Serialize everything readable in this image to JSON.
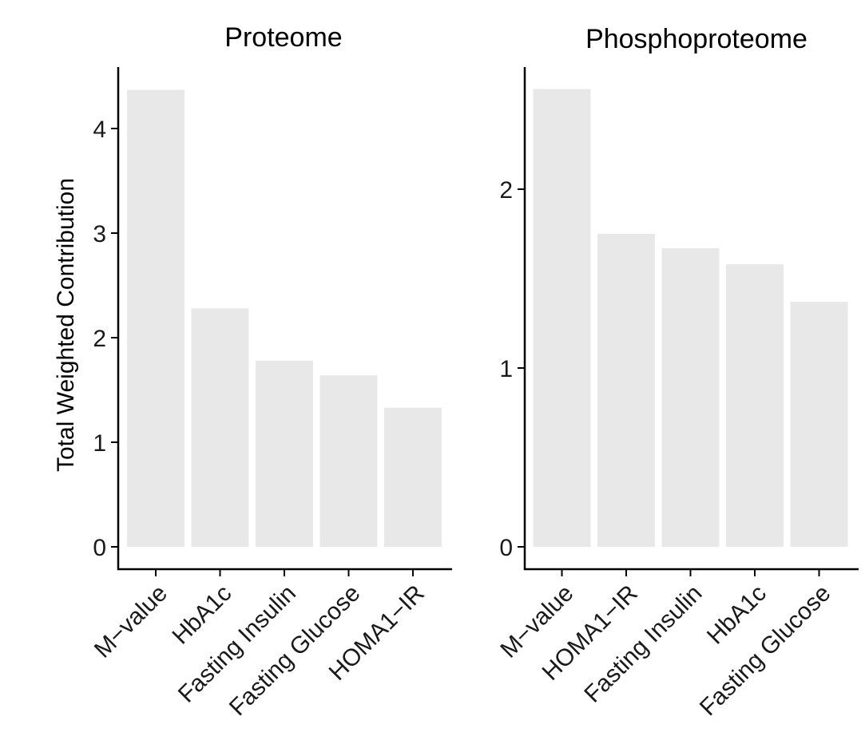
{
  "chart_data": [
    {
      "type": "bar",
      "title": "Proteome",
      "ylabel": "Total Weighted Contribution",
      "xlabel": "",
      "categories": [
        "M−value",
        "HbA1c",
        "Fasting Insulin",
        "Fasting Glucose",
        "HOMA1−IR"
      ],
      "values": [
        4.37,
        2.28,
        1.78,
        1.64,
        1.33
      ],
      "ylim": [
        0,
        4.6
      ],
      "yticks": [
        0,
        1,
        2,
        3,
        4
      ],
      "bar_color": "#e8e8e8",
      "grid": false,
      "legend": "none"
    },
    {
      "type": "bar",
      "title": "Phosphoproteome",
      "ylabel": "",
      "xlabel": "",
      "categories": [
        "M−value",
        "HOMA1−IR",
        "Fasting Insulin",
        "HbA1c",
        "Fasting Glucose"
      ],
      "values": [
        2.56,
        1.75,
        1.67,
        1.58,
        1.37
      ],
      "ylim": [
        0,
        2.7
      ],
      "yticks": [
        0,
        1,
        2
      ],
      "bar_color": "#e8e8e8",
      "grid": false,
      "legend": "none"
    }
  ]
}
